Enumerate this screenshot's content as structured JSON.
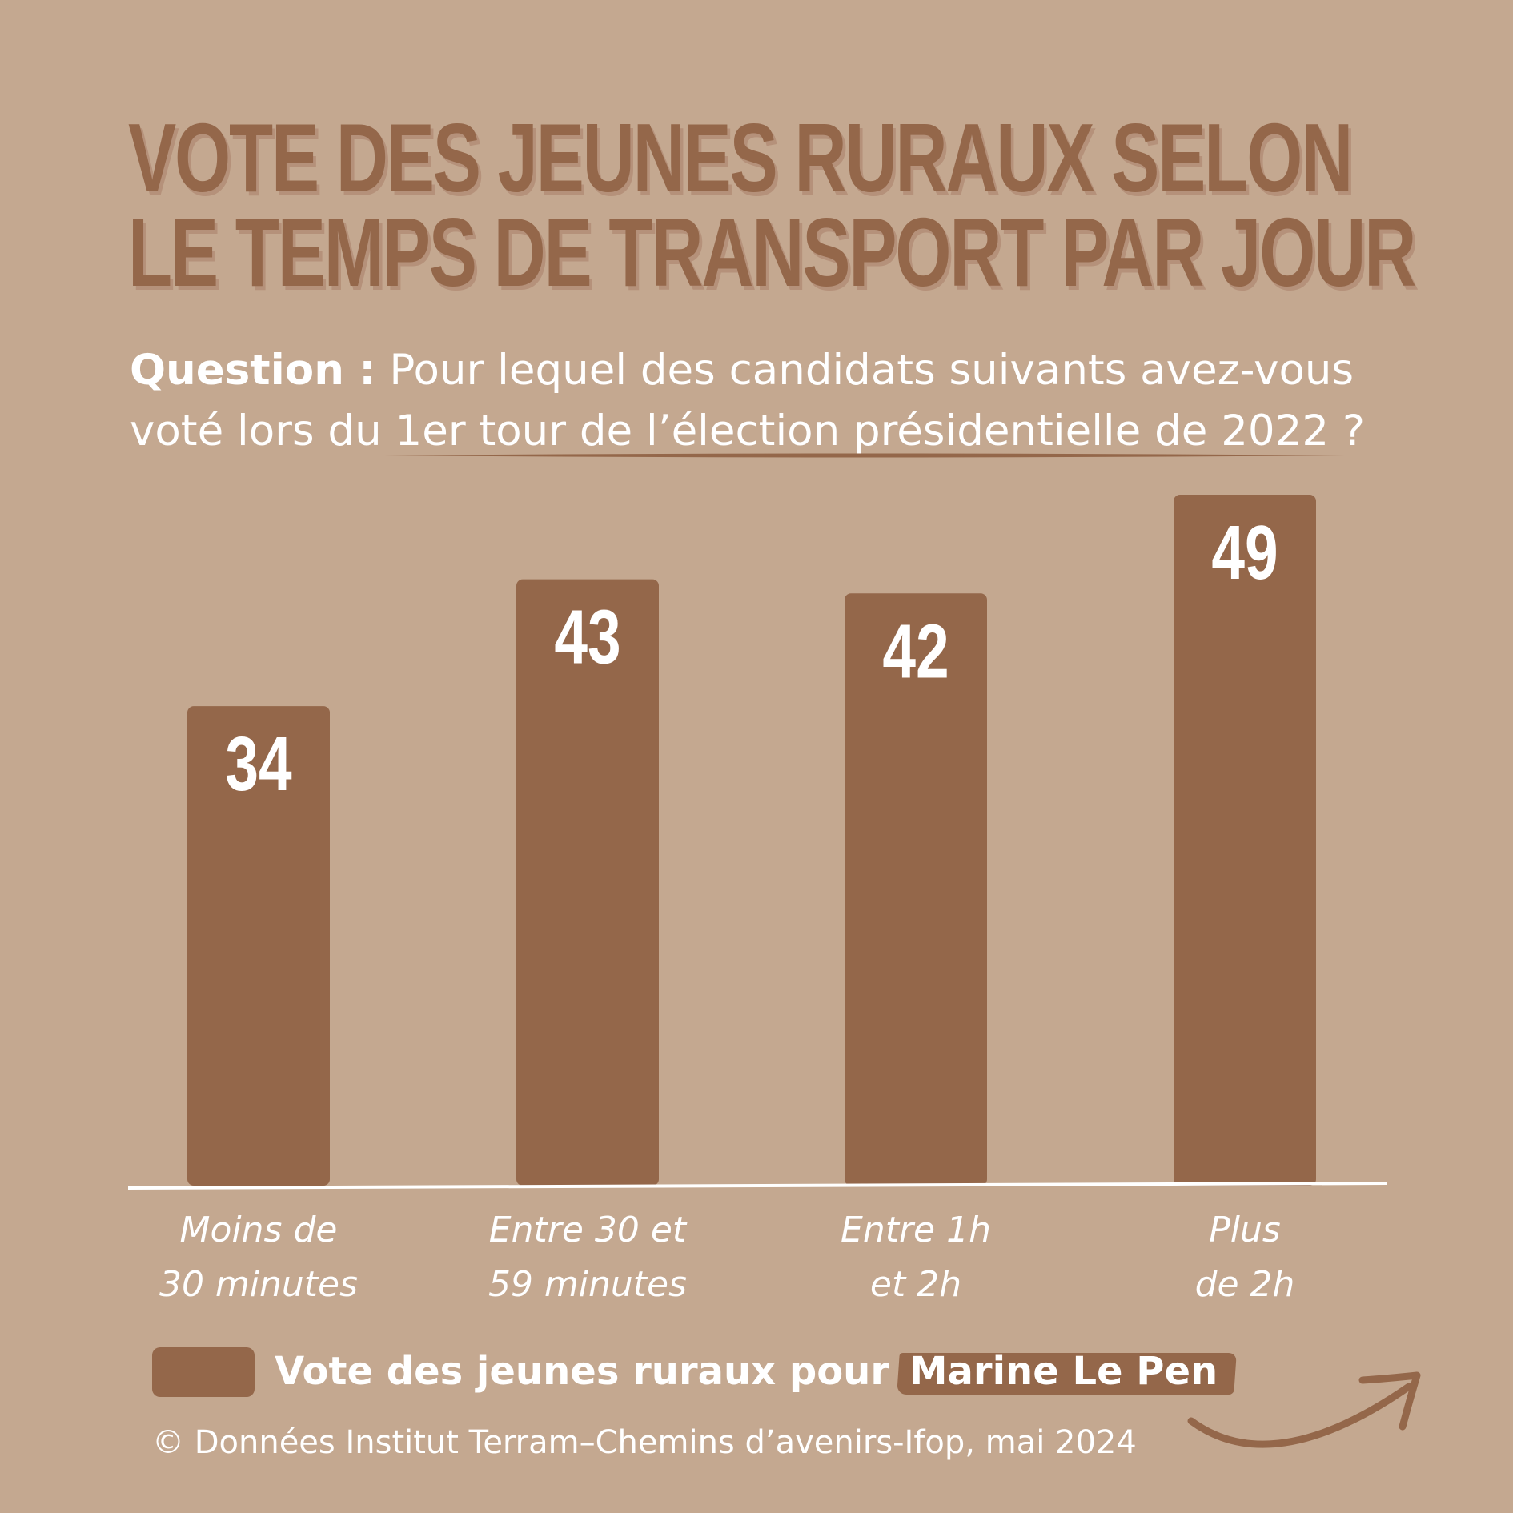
{
  "title_lines": [
    "VOTE DES JEUNES RURAUX SELON",
    "LE TEMPS DE TRANSPORT PAR JOUR"
  ],
  "question": {
    "label": "Question :",
    "line1_rest": " Pour lequel des candidats suivants avez-vous",
    "line2": "voté lors du 1er tour de l’élection présidentielle de 2022 ?"
  },
  "colors": {
    "background": "#c4a890",
    "bar": "#94674a",
    "text": "#ffffff"
  },
  "chart_data": {
    "type": "bar",
    "categories": [
      [
        "Moins de",
        "30 minutes"
      ],
      [
        "Entre 30 et",
        "59 minutes"
      ],
      [
        "Entre 1h",
        "et 2h"
      ],
      [
        "Plus",
        "de 2h"
      ]
    ],
    "series": [
      {
        "name": "Vote des jeunes ruraux pour Marine Le Pen",
        "values": [
          34,
          43,
          42,
          49
        ]
      }
    ],
    "ylim": [
      0,
      49
    ],
    "grid": false
  },
  "legend": {
    "text": "Vote des jeunes ruraux pour ",
    "highlight": "Marine Le Pen"
  },
  "source": "© Données Institut Terram–Chemins d’avenirs-Ifop, mai 2024"
}
